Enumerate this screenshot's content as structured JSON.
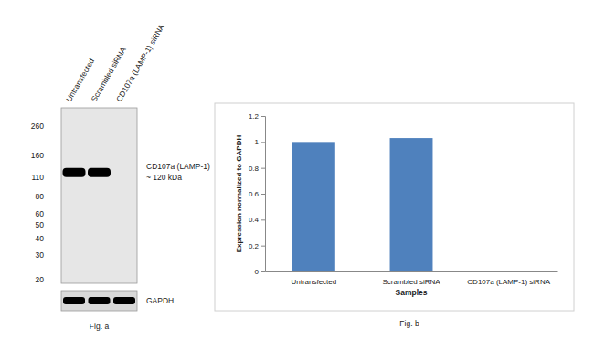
{
  "chart_data": {
    "type": "bar",
    "caption": "Fig. b",
    "categories": [
      "Untransfected",
      "Scrambled siRNA",
      "CD107a (LAMP-1)  siRNA"
    ],
    "values": [
      1,
      1.03,
      0.005
    ],
    "color": "#4f81bd",
    "x_label": "Samples",
    "y_label": "Expression normalized to GAPDH",
    "ylim": [
      0,
      1.2
    ],
    "yticks": [
      0,
      0.2,
      0.4,
      0.6,
      0.8,
      1,
      1.2
    ],
    "grid": false
  },
  "blot": {
    "caption": "Fig. a",
    "lanes": [
      "Untransfected",
      "Scrambled siRNA",
      "CD107a (LAMP-1) siRNA"
    ],
    "markers": [
      260,
      160,
      110,
      80,
      60,
      50,
      40,
      30,
      20
    ],
    "target_label": "CD107a (LAMP-1)",
    "target_size_label": "~ 120 kDa",
    "target_kda": 120,
    "target_bands": [
      1,
      1,
      0
    ],
    "control_label": "GAPDH",
    "control_bands": [
      1,
      1,
      1
    ]
  }
}
